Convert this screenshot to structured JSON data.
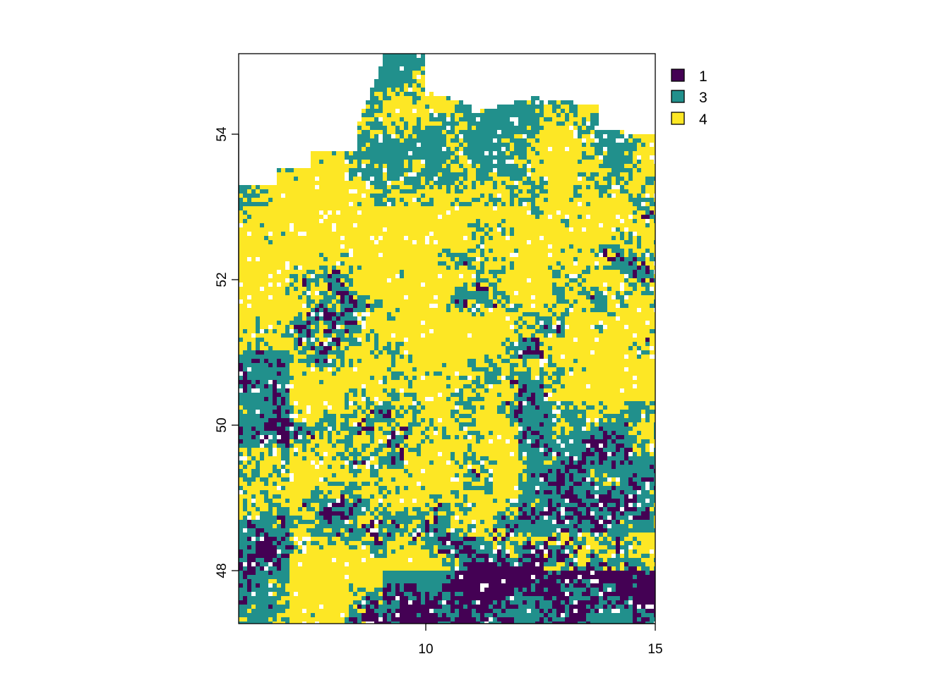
{
  "chart_data": {
    "type": "heatmap",
    "title": "",
    "xlabel": "",
    "ylabel": "",
    "xlim": [
      5.87,
      15.04
    ],
    "ylim": [
      47.27,
      55.06
    ],
    "x_ticks": [
      10,
      15
    ],
    "x_tick_labels": [
      "10",
      "15"
    ],
    "y_ticks": [
      48,
      50,
      52,
      54
    ],
    "y_tick_labels": [
      "48",
      "50",
      "52",
      "54"
    ],
    "grid": false,
    "legend_position": "right",
    "classes": [
      {
        "label": "1",
        "color": "#440154"
      },
      {
        "label": "3",
        "color": "#21908C"
      },
      {
        "label": "4",
        "color": "#FDE725"
      }
    ],
    "no_data_color": "#FFFFFF"
  }
}
